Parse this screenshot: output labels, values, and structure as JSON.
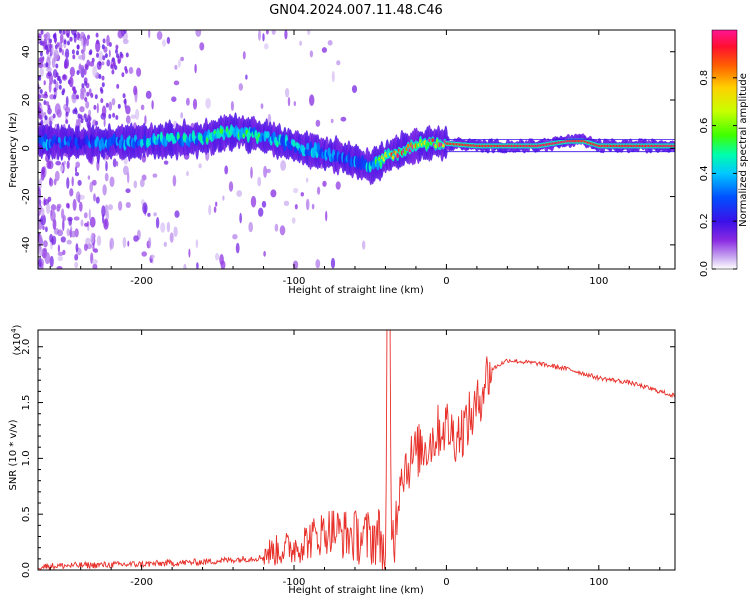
{
  "title": "GN04.2024.007.11.48.C46",
  "chart_data": [
    {
      "type": "heatmap",
      "xlabel": "Height of straight line (km)",
      "ylabel": "Frequency (Hz)",
      "xlim": [
        -268,
        150
      ],
      "ylim": [
        -50,
        49
      ],
      "xticks": [
        -200,
        -100,
        0,
        100
      ],
      "yticks": [
        -40,
        -20,
        0,
        20,
        40
      ],
      "colorbar": {
        "label": "Normalized spectral amplitude",
        "range": [
          0,
          1
        ],
        "ticks": [
          "0.0",
          "0.2",
          "0.4",
          "0.6",
          "0.8"
        ],
        "colormap": [
          "#ffffff",
          "#c8a8f0",
          "#8a2be2",
          "#3a10e8",
          "#0050ff",
          "#00c8ff",
          "#00ffaa",
          "#40ff00",
          "#c8ff00",
          "#ffd000",
          "#ff6000",
          "#ff1030",
          "#ff1493"
        ]
      },
      "ridge": {
        "description_points_x": [
          -268,
          -240,
          -200,
          -160,
          -140,
          -120,
          -100,
          -80,
          -60,
          -50,
          -40,
          -30,
          -20,
          -10,
          0,
          20,
          60,
          80,
          90,
          100,
          150
        ],
        "frequency_hz": [
          3,
          2,
          3,
          4,
          7,
          5,
          1,
          -2,
          -5,
          -8,
          -4,
          -1,
          1,
          2,
          2,
          1,
          1,
          3,
          3,
          1,
          1
        ],
        "peak_amplitude": [
          0.35,
          0.3,
          0.4,
          0.45,
          0.5,
          0.45,
          0.4,
          0.35,
          0.35,
          0.4,
          0.7,
          0.85,
          0.9,
          0.9,
          0.9,
          0.92,
          0.95,
          0.95,
          0.9,
          0.92,
          0.95
        ]
      }
    },
    {
      "type": "line",
      "xlabel": "Height of straight line (km)",
      "ylabel": "SNR (10 * v/v)",
      "scale_label": "(x10",
      "scale_exponent": "4",
      "xlim": [
        -268,
        150
      ],
      "ylim": [
        0,
        2.15
      ],
      "xticks": [
        -200,
        -100,
        0,
        100
      ],
      "yticks": [
        "0.0",
        "0.5",
        "1.0",
        "1.5",
        "2.0"
      ],
      "color": "#e8302a",
      "series": [
        {
          "x": [
            -268,
            -240,
            -200,
            -160,
            -140,
            -120,
            -100,
            -90,
            -80,
            -75,
            -70,
            -60,
            -50,
            -45,
            -40,
            -38,
            -36,
            -34,
            -30,
            -25,
            -20,
            -15,
            -10,
            -5,
            0,
            5,
            10,
            15,
            20,
            25,
            30,
            40,
            60,
            80,
            100,
            120,
            150
          ],
          "y": [
            0.02,
            0.03,
            0.04,
            0.06,
            0.08,
            0.1,
            0.14,
            0.2,
            0.26,
            0.28,
            0.24,
            0.2,
            0.18,
            0.2,
            0.14,
            2.15,
            0.4,
            0.3,
            0.9,
            0.95,
            1.05,
            1.1,
            1.15,
            1.25,
            1.3,
            1.2,
            1.25,
            1.35,
            1.45,
            1.7,
            1.8,
            1.88,
            1.85,
            1.8,
            1.72,
            1.68,
            1.56
          ]
        }
      ]
    }
  ]
}
